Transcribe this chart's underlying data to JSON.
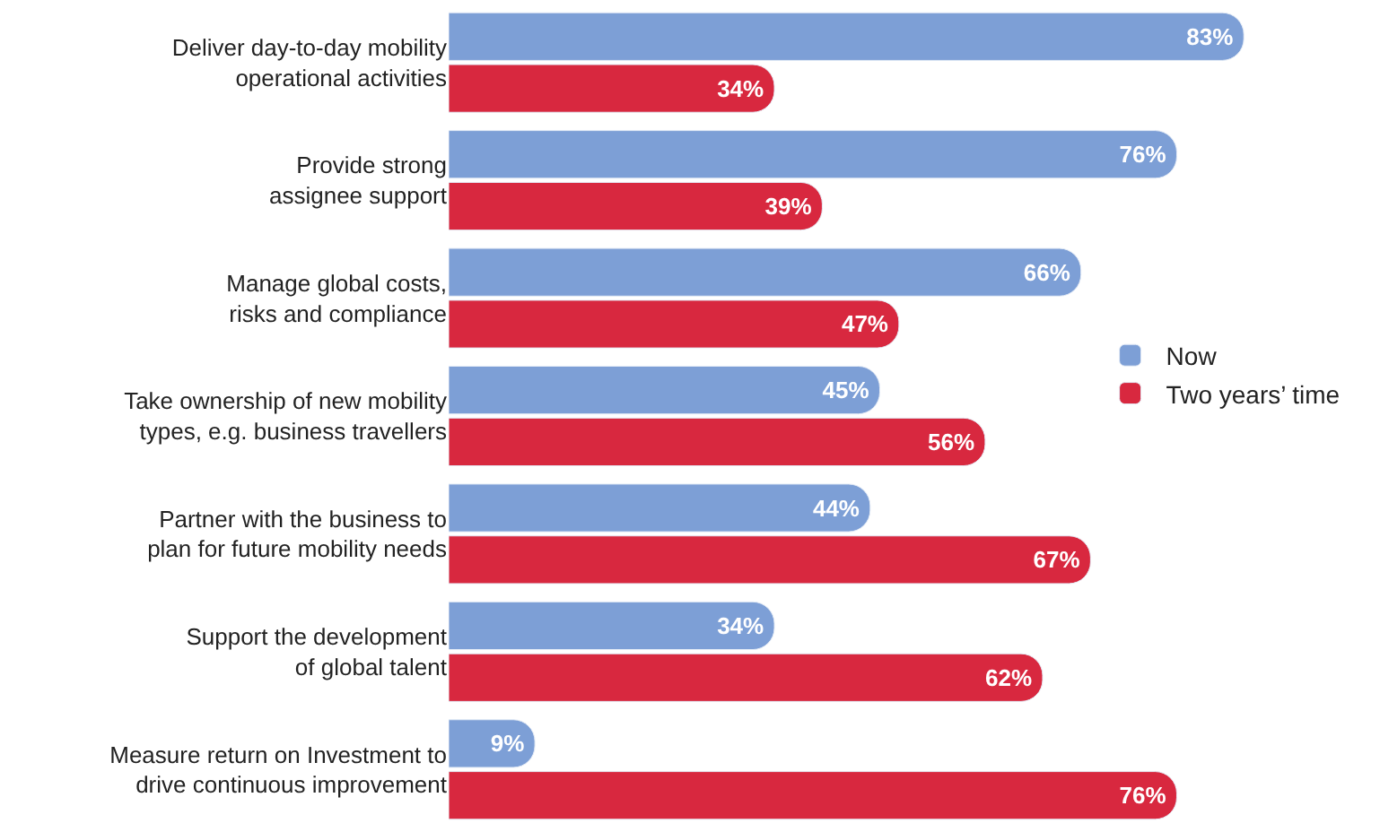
{
  "chart_data": {
    "type": "bar",
    "orientation": "horizontal",
    "categories": [
      "Deliver day-to-day mobility\noperational activities",
      "Provide strong\nassignee support",
      "Manage global costs,\nrisks and compliance",
      "Take ownership of new mobility\ntypes, e.g. business travellers",
      "Partner with the business to\nplan for future mobility needs",
      "Support the development\nof global talent",
      "Measure return on Investment to\ndrive continuous improvement"
    ],
    "series": [
      {
        "name": "Now",
        "color": "#7d9fd6",
        "values": [
          83,
          76,
          66,
          45,
          44,
          34,
          9
        ],
        "value_labels": [
          "83%",
          "76%",
          "66%",
          "45%",
          "44%",
          "34%",
          "9%"
        ]
      },
      {
        "name": "Two years’ time",
        "color": "#d8283f",
        "values": [
          34,
          39,
          47,
          56,
          67,
          62,
          76
        ],
        "value_labels": [
          "34%",
          "39%",
          "47%",
          "56%",
          "67%",
          "62%",
          "76%"
        ]
      }
    ],
    "legend": "right",
    "tick_labels": "y"
  }
}
